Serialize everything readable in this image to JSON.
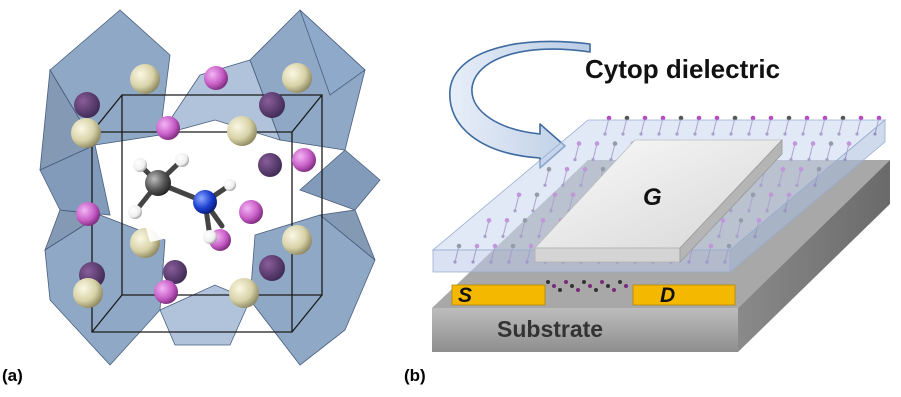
{
  "panels": {
    "a": {
      "label": "(a)"
    },
    "b": {
      "label": "(b)",
      "layer_label": "Cytop dielectric",
      "gate_label": "G",
      "source_label": "S",
      "drain_label": "D",
      "substrate_label": "Substrate"
    }
  },
  "colors": {
    "octahedron": "#6f8fb5",
    "lead_atom": "#d8d2a8",
    "iodide_atom": "#c85fc8",
    "nitrogen_atom": "#1a3fd0",
    "carbon_atom": "#555555",
    "hydrogen_atom": "#f2f2f2",
    "dielectric": "#c9d6ee",
    "gate": "#eeeeee",
    "electrode": "#f5b800",
    "substrate": "#9a9a9a"
  }
}
